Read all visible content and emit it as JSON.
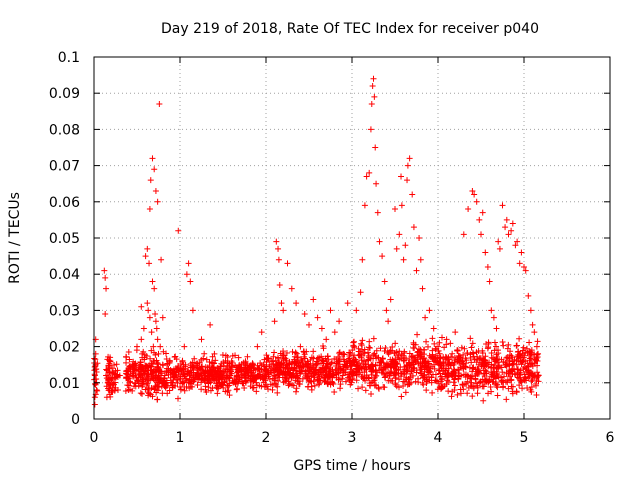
{
  "chart_data": {
    "type": "scatter",
    "title": "Day 219 of 2018, Rate Of TEC Index for receiver p040",
    "xlabel": "GPS time / hours",
    "ylabel": "ROTI / TECUs",
    "xlim": [
      0,
      6
    ],
    "ylim": [
      0,
      0.1
    ],
    "xticks": [
      0,
      1,
      2,
      3,
      4,
      5,
      6
    ],
    "xtick_labels": [
      "0",
      "1",
      "2",
      "3",
      "4",
      "5",
      "6"
    ],
    "yticks": [
      0,
      0.01,
      0.02,
      0.03,
      0.04,
      0.05,
      0.06,
      0.07,
      0.08,
      0.09,
      0.1
    ],
    "ytick_labels": [
      "0",
      "0.01",
      "0.02",
      "0.03",
      "0.04",
      "0.05",
      "0.06",
      "0.07",
      "0.08",
      "0.09",
      "0.1"
    ],
    "grid": true,
    "marker": "+",
    "series": [
      {
        "name": "p040",
        "color": "#ff0000",
        "x": [
          0.01,
          0.01,
          0.02,
          0.02,
          0.03,
          0.03,
          0.02,
          0.01,
          0.02,
          0.03,
          0.12,
          0.13,
          0.13,
          0.14,
          0.14,
          0.15,
          0.16,
          0.17,
          0.18,
          0.19,
          0.3,
          0.4,
          0.45,
          0.5,
          0.55,
          0.56,
          0.58,
          0.6,
          0.62,
          0.64,
          0.65,
          0.66,
          0.68,
          0.7,
          0.72,
          0.74,
          0.76,
          0.78,
          0.8,
          0.85,
          0.9,
          0.68,
          0.7,
          0.71,
          0.72,
          0.73,
          0.74,
          0.75,
          0.77,
          0.62,
          0.63,
          0.65,
          0.67,
          0.69,
          0.7,
          0.72,
          0.55,
          0.6,
          0.98,
          1.05,
          1.08,
          1.1,
          1.12,
          1.15,
          1.25,
          1.35,
          1.4,
          1.45,
          1.6,
          1.75,
          1.9,
          1.95,
          1.97,
          2.1,
          2.12,
          2.14,
          2.15,
          2.16,
          2.18,
          2.2,
          2.25,
          2.3,
          2.35,
          2.4,
          2.45,
          2.5,
          2.55,
          2.6,
          2.65,
          2.7,
          2.75,
          2.8,
          2.85,
          2.9,
          2.95,
          3.05,
          3.1,
          3.12,
          3.15,
          3.17,
          3.2,
          3.22,
          3.23,
          3.24,
          3.25,
          3.26,
          3.27,
          3.28,
          3.3,
          3.32,
          3.35,
          3.38,
          3.4,
          3.42,
          3.45,
          3.5,
          3.52,
          3.55,
          3.57,
          3.58,
          3.6,
          3.62,
          3.64,
          3.65,
          3.67,
          3.7,
          3.72,
          3.75,
          3.78,
          3.8,
          3.82,
          3.85,
          3.9,
          3.95,
          4.0,
          4.1,
          4.2,
          4.3,
          4.35,
          4.4,
          4.42,
          4.45,
          4.48,
          4.5,
          4.52,
          4.55,
          4.58,
          4.6,
          4.62,
          4.65,
          4.68,
          4.7,
          4.72,
          4.75,
          4.78,
          4.8,
          4.82,
          4.85,
          4.87,
          4.9,
          4.92,
          4.95,
          4.97,
          5.0,
          5.02,
          5.05,
          5.08,
          5.1,
          5.12,
          5.15,
          5.16,
          5.17
        ],
        "y": [
          0.004,
          0.012,
          0.018,
          0.022,
          0.01,
          0.008,
          0.015,
          0.006,
          0.011,
          0.013,
          0.041,
          0.039,
          0.029,
          0.036,
          0.012,
          0.006,
          0.01,
          0.014,
          0.008,
          0.016,
          0.012,
          0.008,
          0.015,
          0.02,
          0.031,
          0.018,
          0.025,
          0.045,
          0.047,
          0.043,
          0.058,
          0.066,
          0.072,
          0.069,
          0.063,
          0.06,
          0.087,
          0.044,
          0.028,
          0.015,
          0.01,
          0.038,
          0.036,
          0.029,
          0.027,
          0.025,
          0.022,
          0.018,
          0.02,
          0.032,
          0.03,
          0.028,
          0.024,
          0.02,
          0.016,
          0.012,
          0.022,
          0.014,
          0.052,
          0.02,
          0.04,
          0.043,
          0.038,
          0.03,
          0.022,
          0.026,
          0.018,
          0.014,
          0.016,
          0.012,
          0.02,
          0.024,
          0.015,
          0.027,
          0.049,
          0.047,
          0.044,
          0.037,
          0.032,
          0.03,
          0.043,
          0.036,
          0.032,
          0.02,
          0.029,
          0.026,
          0.033,
          0.028,
          0.025,
          0.022,
          0.03,
          0.024,
          0.027,
          0.018,
          0.032,
          0.03,
          0.035,
          0.044,
          0.059,
          0.067,
          0.068,
          0.08,
          0.087,
          0.092,
          0.094,
          0.089,
          0.075,
          0.065,
          0.057,
          0.049,
          0.045,
          0.038,
          0.03,
          0.027,
          0.033,
          0.058,
          0.047,
          0.051,
          0.067,
          0.059,
          0.044,
          0.048,
          0.066,
          0.07,
          0.072,
          0.062,
          0.053,
          0.041,
          0.05,
          0.044,
          0.036,
          0.028,
          0.03,
          0.025,
          0.02,
          0.022,
          0.024,
          0.051,
          0.058,
          0.063,
          0.062,
          0.06,
          0.055,
          0.051,
          0.057,
          0.046,
          0.042,
          0.038,
          0.03,
          0.028,
          0.025,
          0.049,
          0.047,
          0.059,
          0.053,
          0.055,
          0.051,
          0.052,
          0.054,
          0.048,
          0.049,
          0.043,
          0.046,
          0.042,
          0.041,
          0.034,
          0.03,
          0.026,
          0.024,
          0.02,
          0.018,
          0.012
        ]
      }
    ],
    "dense_band": {
      "description": "dense cluster of measurements near baseline",
      "segments": [
        {
          "x_from": 0.0,
          "x_to": 0.04,
          "y_low": 0.003,
          "y_high": 0.02
        },
        {
          "x_from": 0.14,
          "x_to": 0.28,
          "y_low": 0.004,
          "y_high": 0.018
        },
        {
          "x_from": 0.37,
          "x_to": 1.0,
          "y_low": 0.004,
          "y_high": 0.018
        },
        {
          "x_from": 1.0,
          "x_to": 2.0,
          "y_low": 0.006,
          "y_high": 0.017
        },
        {
          "x_from": 2.0,
          "x_to": 3.0,
          "y_low": 0.006,
          "y_high": 0.019
        },
        {
          "x_from": 3.0,
          "x_to": 4.0,
          "y_low": 0.005,
          "y_high": 0.022
        },
        {
          "x_from": 4.0,
          "x_to": 5.17,
          "y_low": 0.004,
          "y_high": 0.021
        }
      ]
    }
  }
}
